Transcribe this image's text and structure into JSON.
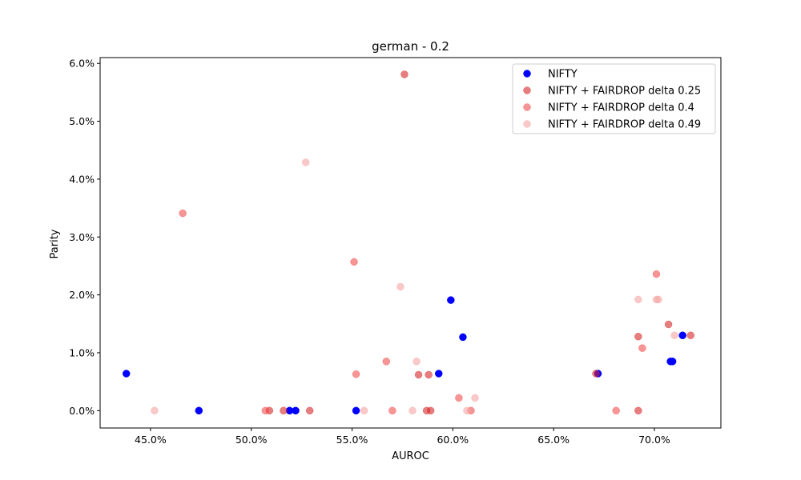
{
  "chart_data": {
    "type": "scatter",
    "title": "german - 0.2",
    "xlabel": "AUROC",
    "ylabel": "Parity",
    "xlim": [
      0.425,
      0.733
    ],
    "ylim": [
      -0.003,
      0.061
    ],
    "xticks": [
      0.45,
      0.5,
      0.55,
      0.6,
      0.65,
      0.7
    ],
    "xtick_labels": [
      "45.0%",
      "50.0%",
      "55.0%",
      "60.0%",
      "65.0%",
      "70.0%"
    ],
    "yticks": [
      0.0,
      0.01,
      0.02,
      0.03,
      0.04,
      0.05,
      0.06
    ],
    "ytick_labels": [
      "0.0%",
      "1.0%",
      "2.0%",
      "3.0%",
      "4.0%",
      "5.0%",
      "6.0%"
    ],
    "grid": false,
    "legend_position": "top-right",
    "series": [
      {
        "name": "NIFTY",
        "color": "#0000ff",
        "opacity": 1.0,
        "points": [
          [
            0.438,
            0.0064
          ],
          [
            0.474,
            0.0
          ],
          [
            0.519,
            0.0
          ],
          [
            0.522,
            0.0
          ],
          [
            0.552,
            0.0
          ],
          [
            0.593,
            0.0064
          ],
          [
            0.599,
            0.0191
          ],
          [
            0.605,
            0.0127
          ],
          [
            0.672,
            0.0064
          ],
          [
            0.708,
            0.0085
          ],
          [
            0.709,
            0.0085
          ],
          [
            0.714,
            0.013
          ]
        ]
      },
      {
        "name": "NIFTY + FAIRDROP delta 0.25",
        "color": "#d62728",
        "opacity": 0.6,
        "points": [
          [
            0.509,
            0.0
          ],
          [
            0.516,
            0.0
          ],
          [
            0.529,
            0.0
          ],
          [
            0.576,
            0.0581
          ],
          [
            0.583,
            0.0062
          ],
          [
            0.587,
            0.0
          ],
          [
            0.588,
            0.0062
          ],
          [
            0.589,
            0.0
          ],
          [
            0.671,
            0.0064
          ],
          [
            0.692,
            0.0128
          ],
          [
            0.692,
            0.0
          ],
          [
            0.707,
            0.0149
          ],
          [
            0.718,
            0.013
          ]
        ]
      },
      {
        "name": "NIFTY + FAIRDROP delta 0.4",
        "color": "#f03c3c",
        "opacity": 0.55,
        "points": [
          [
            0.466,
            0.0341
          ],
          [
            0.507,
            0.0
          ],
          [
            0.551,
            0.0257
          ],
          [
            0.552,
            0.0063
          ],
          [
            0.567,
            0.0085
          ],
          [
            0.57,
            0.0
          ],
          [
            0.603,
            0.0022
          ],
          [
            0.609,
            0.0
          ],
          [
            0.681,
            0.0
          ],
          [
            0.694,
            0.0108
          ],
          [
            0.701,
            0.0236
          ]
        ]
      },
      {
        "name": "NIFTY + FAIRDROP delta 0.49",
        "color": "#f5a3a3",
        "opacity": 0.6,
        "points": [
          [
            0.452,
            0.0
          ],
          [
            0.527,
            0.0429
          ],
          [
            0.556,
            0.0
          ],
          [
            0.574,
            0.0214
          ],
          [
            0.58,
            0.0
          ],
          [
            0.582,
            0.0085
          ],
          [
            0.607,
            0.0
          ],
          [
            0.611,
            0.0022
          ],
          [
            0.692,
            0.0192
          ],
          [
            0.701,
            0.0192
          ],
          [
            0.702,
            0.0192
          ],
          [
            0.71,
            0.013
          ]
        ]
      }
    ]
  }
}
